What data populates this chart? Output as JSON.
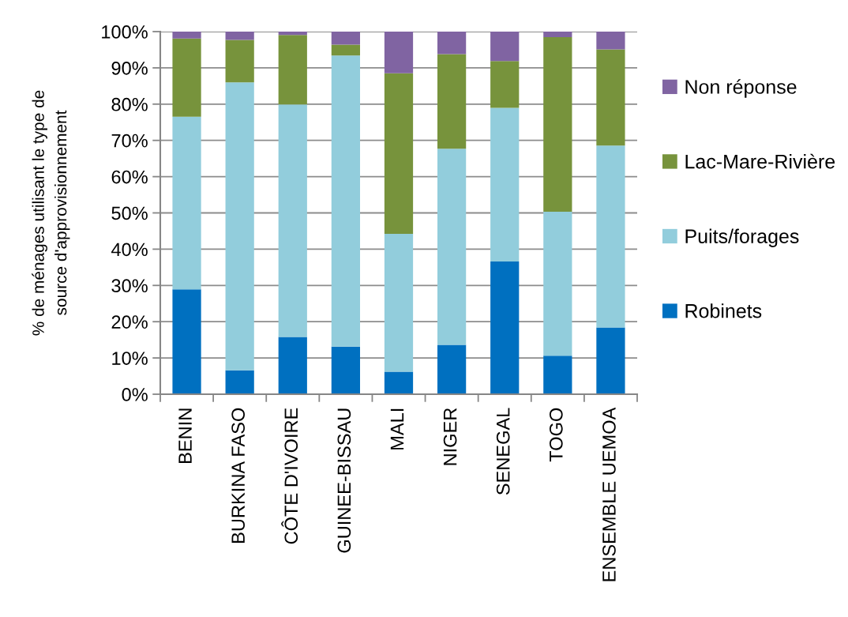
{
  "chart_data": {
    "type": "bar",
    "stacked": true,
    "ylabel": "% de ménages utilisant le type de\nsource d'approvisionnement",
    "categories": [
      "BENIN",
      "BURKINA FASO",
      "CÔTE D'IVOIRE",
      "GUINEE-BISSAU",
      "MALI",
      "NIGER",
      "SENEGAL",
      "TOGO",
      "ENSEMBLE UEMOA"
    ],
    "series": [
      {
        "name": "Robinets",
        "color": "#0070c0",
        "values": [
          28.9,
          6.6,
          15.8,
          13.1,
          6.2,
          13.6,
          36.6,
          10.6,
          18.4
        ]
      },
      {
        "name": "Puits/forages",
        "color": "#92cddc",
        "values": [
          47.6,
          79.4,
          64.1,
          80.3,
          38.0,
          54.1,
          42.4,
          39.7,
          50.2
        ]
      },
      {
        "name": "Lac-Mare-Rivière",
        "color": "#77933c",
        "values": [
          21.6,
          11.7,
          19.2,
          3.0,
          44.3,
          26.1,
          12.9,
          48.2,
          26.5
        ]
      },
      {
        "name": "Non réponse",
        "color": "#8064a2",
        "values": [
          1.9,
          2.3,
          0.9,
          3.6,
          11.5,
          6.2,
          8.1,
          1.5,
          4.9
        ]
      }
    ],
    "ylim": [
      0,
      100
    ],
    "yticks": [
      {
        "value": 0,
        "label": "0%"
      },
      {
        "value": 10,
        "label": "10%"
      },
      {
        "value": 20,
        "label": "20%"
      },
      {
        "value": 30,
        "label": "30%"
      },
      {
        "value": 40,
        "label": "40%"
      },
      {
        "value": 50,
        "label": "50%"
      },
      {
        "value": 60,
        "label": "60%"
      },
      {
        "value": 70,
        "label": "70%"
      },
      {
        "value": 80,
        "label": "80%"
      },
      {
        "value": 90,
        "label": "90%"
      },
      {
        "value": 100,
        "label": "100%"
      }
    ],
    "grid": "y",
    "legend": "right"
  }
}
